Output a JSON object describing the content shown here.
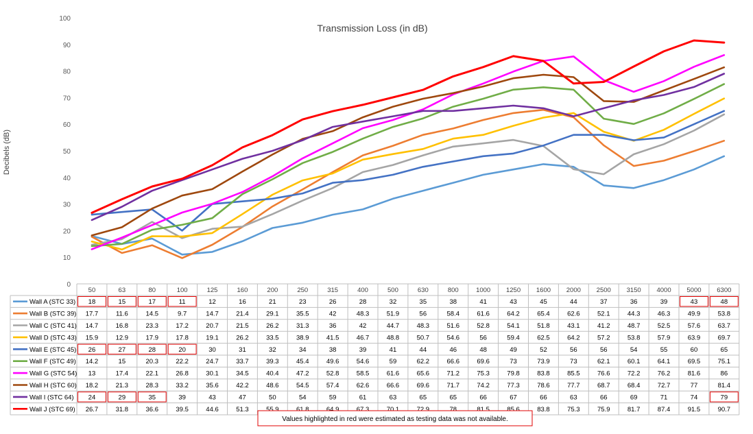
{
  "chart_data": {
    "type": "line",
    "title": "Transmission Loss (in dB)",
    "ylabel": "Decibels (dB)",
    "xlabel": "",
    "ylim": [
      0,
      100
    ],
    "yticks": [
      0,
      10,
      20,
      30,
      40,
      50,
      60,
      70,
      80,
      90,
      100
    ],
    "grid": false,
    "legend": "table-below",
    "categories": [
      "50",
      "63",
      "80",
      "100",
      "125",
      "160",
      "200",
      "250",
      "315",
      "400",
      "500",
      "630",
      "800",
      "1000",
      "1250",
      "1600",
      "2000",
      "2500",
      "3150",
      "4000",
      "5000",
      "6300"
    ],
    "series": [
      {
        "name": "Wall A (STC 33)",
        "color": "#5b9bd5",
        "values": [
          18,
          15,
          17,
          11,
          12,
          16,
          21,
          23,
          26,
          28,
          32,
          35,
          38,
          41,
          43,
          45,
          44,
          37,
          36,
          39,
          43,
          48
        ],
        "labels": [
          "18",
          "15",
          "17",
          "11",
          "12",
          "16",
          "21",
          "23",
          "26",
          "28",
          "32",
          "35",
          "38",
          "41",
          "43",
          "45",
          "44",
          "37",
          "36",
          "39",
          "43",
          "48"
        ],
        "estimated": [
          0,
          1,
          2,
          3,
          20,
          21
        ]
      },
      {
        "name": "Wall B (STC 39)",
        "color": "#ed7d31",
        "values": [
          17.7,
          11.6,
          14.5,
          9.7,
          14.7,
          21.4,
          29.1,
          35.5,
          42,
          48.3,
          51.9,
          56,
          58.4,
          61.6,
          64.2,
          65.4,
          62.6,
          52.1,
          44.3,
          46.3,
          49.9,
          53.8
        ],
        "labels": [
          "17.7",
          "11.6",
          "14.5",
          "9.7",
          "14.7",
          "21.4",
          "29.1",
          "35.5",
          "42",
          "48.3",
          "51.9",
          "56",
          "58.4",
          "61.6",
          "64.2",
          "65.4",
          "62.6",
          "52.1",
          "44.3",
          "46.3",
          "49.9",
          "53.8"
        ],
        "estimated": []
      },
      {
        "name": "Wall C (STC 41)",
        "color": "#a5a5a5",
        "values": [
          14.7,
          16.8,
          23.3,
          17.2,
          20.7,
          21.5,
          26.2,
          31.3,
          36,
          42,
          44.7,
          48.3,
          51.6,
          52.8,
          54.1,
          51.8,
          43.1,
          41.2,
          48.7,
          52.5,
          57.6,
          63.7
        ],
        "labels": [
          "14.7",
          "16.8",
          "23.3",
          "17.2",
          "20.7",
          "21.5",
          "26.2",
          "31.3",
          "36",
          "42",
          "44.7",
          "48.3",
          "51.6",
          "52.8",
          "54.1",
          "51.8",
          "43.1",
          "41.2",
          "48.7",
          "52.5",
          "57.6",
          "63.7"
        ],
        "estimated": []
      },
      {
        "name": "Wall D (STC 43)",
        "color": "#ffc000",
        "values": [
          15.9,
          12.9,
          17.9,
          17.8,
          19.1,
          26.2,
          33.5,
          38.9,
          41.5,
          46.7,
          48.8,
          50.7,
          54.6,
          56,
          59.4,
          62.5,
          64.2,
          57.2,
          53.8,
          57.9,
          63.9,
          69.7
        ],
        "labels": [
          "15.9",
          "12.9",
          "17.9",
          "17.8",
          "19.1",
          "26.2",
          "33.5",
          "38.9",
          "41.5",
          "46.7",
          "48.8",
          "50.7",
          "54.6",
          "56",
          "59.4",
          "62.5",
          "64.2",
          "57.2",
          "53.8",
          "57.9",
          "63.9",
          "69.7"
        ],
        "estimated": []
      },
      {
        "name": "Wall E (STC 45)",
        "color": "#4472c4",
        "values": [
          26,
          27,
          28,
          20,
          30,
          31,
          32,
          34,
          38,
          39,
          41,
          44,
          46,
          48,
          49,
          52,
          56,
          56,
          54,
          55,
          60,
          65
        ],
        "labels": [
          "26",
          "27",
          "28",
          "20",
          "30",
          "31",
          "32",
          "34",
          "38",
          "39",
          "41",
          "44",
          "46",
          "48",
          "49",
          "52",
          "56",
          "56",
          "54",
          "55",
          "60",
          "65"
        ],
        "estimated": [
          0,
          1,
          2,
          3
        ]
      },
      {
        "name": "Wall F (STC 49)",
        "color": "#70ad47",
        "values": [
          14.2,
          15,
          20.3,
          22.2,
          24.7,
          33.7,
          39.3,
          45.4,
          49.6,
          54.6,
          59,
          62.2,
          66.6,
          69.6,
          73,
          73.9,
          73,
          62.1,
          60.1,
          64.1,
          69.5,
          75.1
        ],
        "labels": [
          "14.2",
          "15",
          "20.3",
          "22.2",
          "24.7",
          "33.7",
          "39.3",
          "45.4",
          "49.6",
          "54.6",
          "59",
          "62.2",
          "66.6",
          "69.6",
          "73",
          "73.9",
          "73",
          "62.1",
          "60.1",
          "64.1",
          "69.5",
          "75.1"
        ],
        "estimated": []
      },
      {
        "name": "Wall G (STC 54)",
        "color": "#ff00ff",
        "values": [
          13,
          17.4,
          22.1,
          26.8,
          30.1,
          34.5,
          40.4,
          47.2,
          52.8,
          58.5,
          61.6,
          65.6,
          71.2,
          75.3,
          79.8,
          83.8,
          85.5,
          76.6,
          72.2,
          76.2,
          81.6,
          86
        ],
        "labels": [
          "13",
          "17.4",
          "22.1",
          "26.8",
          "30.1",
          "34.5",
          "40.4",
          "47.2",
          "52.8",
          "58.5",
          "61.6",
          "65.6",
          "71.2",
          "75.3",
          "79.8",
          "83.8",
          "85.5",
          "76.6",
          "72.2",
          "76.2",
          "81.6",
          "86"
        ],
        "estimated": []
      },
      {
        "name": "Wall H (STC 60)",
        "color": "#9e480e",
        "values": [
          18.2,
          21.3,
          28.3,
          33.2,
          35.6,
          42.2,
          48.6,
          54.5,
          57.4,
          62.6,
          66.6,
          69.6,
          71.7,
          74.2,
          77.3,
          78.6,
          77.7,
          68.7,
          68.4,
          72.7,
          77,
          81.4
        ],
        "labels": [
          "18.2",
          "21.3",
          "28.3",
          "33.2",
          "35.6",
          "42.2",
          "48.6",
          "54.5",
          "57.4",
          "62.6",
          "66.6",
          "69.6",
          "71.7",
          "74.2",
          "77.3",
          "78.6",
          "77.7",
          "68.7",
          "68.4",
          "72.7",
          "77",
          "81.4"
        ],
        "estimated": []
      },
      {
        "name": "Wall I (STC 64)",
        "color": "#7030a0",
        "values": [
          24,
          29,
          35,
          39,
          43,
          47,
          50,
          54,
          59,
          61,
          63,
          65,
          65,
          66,
          67,
          66,
          63,
          66,
          69,
          71,
          74,
          79
        ],
        "labels": [
          "24",
          "29",
          "35",
          "39",
          "43",
          "47",
          "50",
          "54",
          "59",
          "61",
          "63",
          "65",
          "65",
          "66",
          "67",
          "66",
          "63",
          "66",
          "69",
          "71",
          "74",
          "79"
        ],
        "estimated": [
          0,
          1,
          2,
          21
        ]
      },
      {
        "name": "Wall J (STC 69)",
        "color": "#ff0000",
        "values": [
          26.7,
          31.8,
          36.6,
          39.5,
          44.6,
          51.3,
          55.9,
          61.8,
          64.9,
          67.3,
          70.1,
          72.9,
          78,
          81.5,
          85.6,
          83.8,
          75.3,
          75.9,
          81.7,
          87.4,
          91.5,
          90.7
        ],
        "labels": [
          "26.7",
          "31.8",
          "36.6",
          "39.5",
          "44.6",
          "51.3",
          "55.9",
          "61.8",
          "64.9",
          "67.3",
          "70.1",
          "72.9",
          "78",
          "81.5",
          "85.6",
          "83.8",
          "75.3",
          "75.9",
          "81.7",
          "87.4",
          "91.5",
          "90.7"
        ],
        "estimated": []
      }
    ],
    "note": "Values highlighted in red were estimated as testing data was not available."
  }
}
